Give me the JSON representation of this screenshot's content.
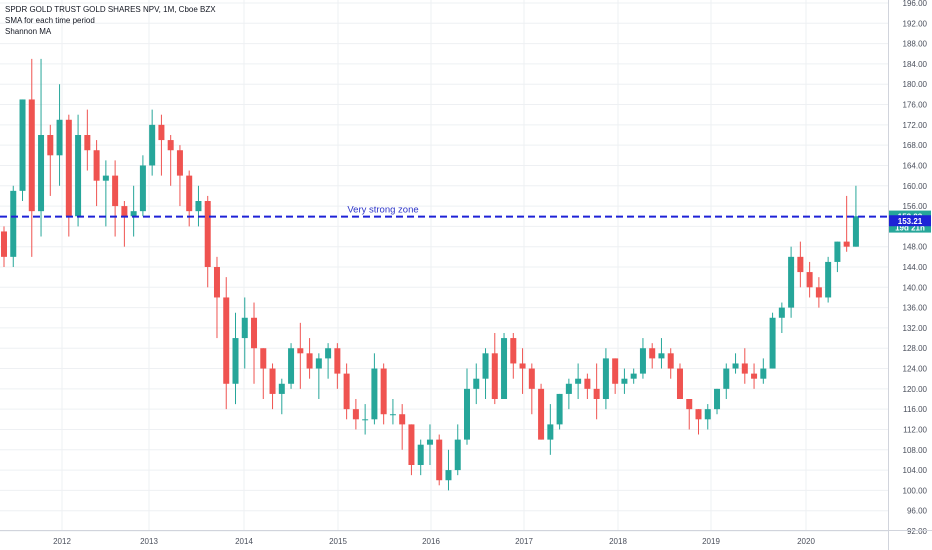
{
  "legend": {
    "symbol": "SPDR GOLD TRUST GOLD SHARES NPV, 1M, Cboe BZX",
    "indicator1": "SMA for each time period",
    "indicator2": "Shannon MA"
  },
  "colors": {
    "up": "#26a69a",
    "down": "#ef5350",
    "zone_line": "#1e22d6",
    "zone_text": "#2c34c8",
    "grid": "#eef0f3",
    "axis_text": "#4a4f5c",
    "last_price_bg": "#26a69a",
    "marker_bg": "#1e22d6"
  },
  "chart_data": {
    "type": "candlestick",
    "title": "SPDR GOLD TRUST GOLD SHARES NPV, 1M, Cboe BZX",
    "xlabel": "",
    "ylabel": "",
    "ylim": [
      92,
      196
    ],
    "y_ticks": [
      92,
      96,
      100,
      104,
      108,
      112,
      116,
      120,
      124,
      128,
      132,
      136,
      140,
      144,
      148,
      152,
      156,
      160,
      164,
      168,
      172,
      176,
      180,
      184,
      188,
      192,
      196
    ],
    "x_labels": [
      "2012",
      "2013",
      "2014",
      "2015",
      "2016",
      "2017",
      "2018",
      "2019",
      "2020"
    ],
    "grid": true,
    "ohlc": [
      [
        151,
        152,
        144,
        146
      ],
      [
        146,
        160,
        144,
        159
      ],
      [
        159,
        177,
        157,
        177
      ],
      [
        177,
        185,
        146,
        155
      ],
      [
        155,
        185,
        150,
        170
      ],
      [
        170,
        172,
        158,
        166
      ],
      [
        166,
        180,
        160,
        173
      ],
      [
        173,
        174,
        150,
        154
      ],
      [
        154,
        174,
        152,
        170
      ],
      [
        170,
        175,
        163,
        167
      ],
      [
        167,
        169,
        156,
        161
      ],
      [
        161,
        165,
        152,
        162
      ],
      [
        162,
        165,
        150,
        156
      ],
      [
        156,
        157,
        148,
        154
      ],
      [
        154,
        160,
        150,
        155
      ],
      [
        155,
        166,
        154,
        164
      ],
      [
        164,
        175,
        162,
        172
      ],
      [
        172,
        174,
        162,
        169
      ],
      [
        169,
        170,
        160,
        167
      ],
      [
        167,
        168,
        156,
        162
      ],
      [
        162,
        163,
        152,
        155
      ],
      [
        155,
        160,
        152,
        157
      ],
      [
        157,
        158,
        140,
        144
      ],
      [
        144,
        146,
        130,
        138
      ],
      [
        138,
        142,
        116,
        121
      ],
      [
        121,
        135,
        117,
        130
      ],
      [
        130,
        138,
        124,
        134
      ],
      [
        134,
        137,
        121,
        128
      ],
      [
        128,
        128,
        118,
        124
      ],
      [
        124,
        125,
        116,
        119
      ],
      [
        119,
        122,
        115,
        121
      ],
      [
        121,
        129,
        120,
        128
      ],
      [
        128,
        133,
        120,
        127
      ],
      [
        127,
        130,
        122,
        124
      ],
      [
        124,
        127,
        118,
        126
      ],
      [
        126,
        129,
        122,
        128
      ],
      [
        128,
        129,
        120,
        123
      ],
      [
        123,
        125,
        114,
        116
      ],
      [
        116,
        118,
        112,
        114
      ],
      [
        114,
        117,
        111,
        114
      ],
      [
        114,
        127,
        113,
        124
      ],
      [
        124,
        125,
        113,
        115
      ],
      [
        115,
        118,
        113,
        115
      ],
      [
        115,
        117,
        108,
        113
      ],
      [
        113,
        113,
        103,
        105
      ],
      [
        105,
        110,
        103,
        109
      ],
      [
        109,
        113,
        105,
        110
      ],
      [
        110,
        111,
        101,
        102
      ],
      [
        102,
        108,
        100,
        104
      ],
      [
        104,
        113,
        103,
        110
      ],
      [
        110,
        124,
        109,
        120
      ],
      [
        120,
        125,
        117,
        122
      ],
      [
        122,
        128,
        118,
        127
      ],
      [
        127,
        131,
        117,
        118
      ],
      [
        118,
        131,
        118,
        130
      ],
      [
        130,
        131,
        122,
        125
      ],
      [
        125,
        128,
        119,
        124
      ],
      [
        124,
        125,
        115,
        120
      ],
      [
        120,
        121,
        110,
        110
      ],
      [
        110,
        117,
        107,
        113
      ],
      [
        113,
        119,
        112,
        119
      ],
      [
        119,
        122,
        116,
        121
      ],
      [
        121,
        125,
        118,
        122
      ],
      [
        122,
        123,
        118,
        120
      ],
      [
        120,
        125,
        114,
        118
      ],
      [
        118,
        128,
        116,
        126
      ],
      [
        126,
        126,
        119,
        121
      ],
      [
        121,
        124,
        119,
        122
      ],
      [
        122,
        124,
        121,
        123
      ],
      [
        123,
        130,
        122,
        128
      ],
      [
        128,
        129,
        124,
        126
      ],
      [
        126,
        130,
        124,
        127
      ],
      [
        127,
        128,
        122,
        124
      ],
      [
        124,
        125,
        118,
        118
      ],
      [
        118,
        118,
        112,
        116
      ],
      [
        116,
        116,
        111,
        114
      ],
      [
        114,
        117,
        112,
        116
      ],
      [
        116,
        120,
        115,
        120
      ],
      [
        120,
        125,
        118,
        124
      ],
      [
        124,
        127,
        123,
        125
      ],
      [
        125,
        128,
        121,
        123
      ],
      [
        123,
        125,
        120,
        122
      ],
      [
        122,
        126,
        121,
        124
      ],
      [
        124,
        135,
        124,
        134
      ],
      [
        134,
        137,
        131,
        136
      ],
      [
        136,
        148,
        134,
        146
      ],
      [
        146,
        149,
        140,
        143
      ],
      [
        143,
        145,
        138,
        140
      ],
      [
        140,
        142,
        136,
        138
      ],
      [
        138,
        146,
        137,
        145
      ],
      [
        145,
        149,
        143,
        149
      ],
      [
        149,
        158,
        147,
        148
      ],
      [
        148,
        160,
        148,
        154
      ]
    ],
    "horizontal_line": {
      "value": 153.93,
      "label": "Very strong zone",
      "style": "dashed"
    },
    "price_labels": [
      {
        "value": 153.93,
        "text": "153.93"
      },
      {
        "text": "19d 21h"
      },
      {
        "value": 153.21,
        "text": "153.21"
      }
    ]
  }
}
